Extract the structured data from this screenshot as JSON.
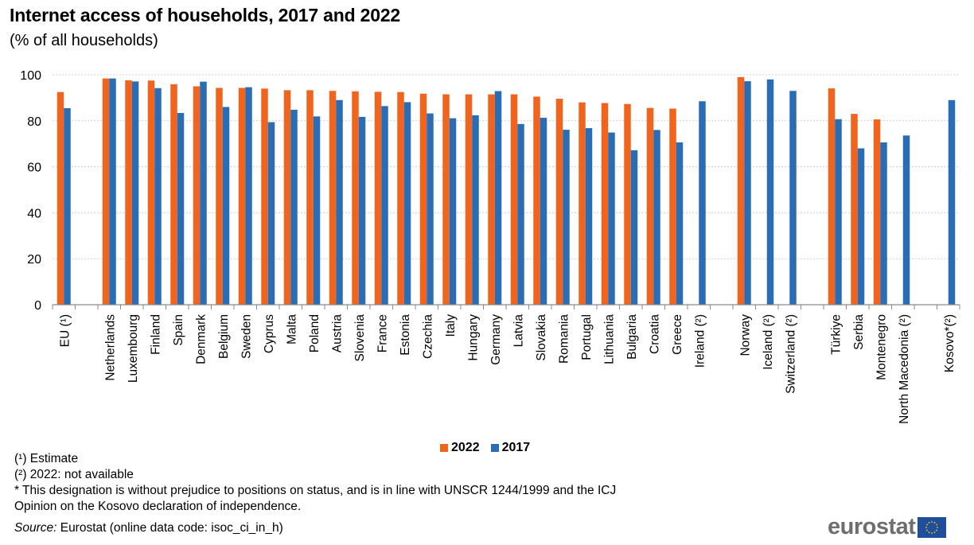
{
  "header": {
    "title": "Internet access of households, 2017 and 2022",
    "subtitle": "(% of all households)"
  },
  "legend": {
    "items": [
      {
        "label": "2022",
        "color": "#f0641e"
      },
      {
        "label": "2017",
        "color": "#2a6db5"
      }
    ]
  },
  "footnotes": {
    "estimate": "(¹) Estimate",
    "not_available": "(²) 2022: not available",
    "kosovo_line1": "* This designation is without prejudice to positions on status, and is in line with UNSCR  1244/1999 and the ICJ",
    "kosovo_line2": "Opinion on the Kosovo declaration of independence."
  },
  "source": {
    "label": "Source:",
    "text": " Eurostat (online data code: isoc_ci_in_h)"
  },
  "logo": {
    "text": "eurostat"
  },
  "chart_data": {
    "type": "bar",
    "title": "Internet access of households, 2017 and 2022",
    "subtitle": "(% of all households)",
    "xlabel": "",
    "ylabel": "",
    "ylim": [
      0,
      100
    ],
    "yticks": [
      0,
      20,
      40,
      60,
      80,
      100
    ],
    "grid": true,
    "legend_position": "bottom-center",
    "categories": [
      "EU (¹)",
      "",
      "Netherlands",
      "Luxembourg",
      "Finland",
      "Spain",
      "Denmark",
      "Belgium",
      "Sweden",
      "Cyprus",
      "Malta",
      "Poland",
      "Austria",
      "Slovenia",
      "France",
      "Estonia",
      "Czechia",
      "Italy",
      "Hungary",
      "Germany",
      "Latvia",
      "Slovakia",
      "Romania",
      "Portugal",
      "Lithuania",
      "Bulgaria",
      "Croatia",
      "Greece",
      "Ireland (²)",
      "",
      "Norway",
      "Iceland (²)",
      "Switzerland (²)",
      "",
      "Türkiye",
      "Serbia",
      "Montenegro",
      "North Macedonia (²)",
      "",
      "Kosovo*(²)"
    ],
    "series": [
      {
        "name": "2022",
        "color": "#f0641e",
        "values": [
          92.5,
          null,
          98.4,
          97.6,
          97.5,
          95.9,
          95.0,
          94.3,
          94.3,
          94.0,
          93.3,
          93.3,
          93.0,
          92.8,
          92.6,
          92.5,
          91.8,
          91.5,
          91.5,
          91.5,
          91.5,
          90.5,
          89.6,
          88.0,
          87.7,
          87.3,
          85.6,
          85.3,
          null,
          null,
          99.0,
          null,
          null,
          null,
          94.1,
          83.0,
          80.6,
          null,
          null,
          null
        ]
      },
      {
        "name": "2017",
        "color": "#2a6db5",
        "values": [
          85.5,
          null,
          98.4,
          97.1,
          94.2,
          83.4,
          97.0,
          86.0,
          94.6,
          79.4,
          84.8,
          81.9,
          89.0,
          81.7,
          86.4,
          88.1,
          83.2,
          81.1,
          82.4,
          92.9,
          78.6,
          81.3,
          76.1,
          76.8,
          74.9,
          67.2,
          76.0,
          70.6,
          88.5,
          null,
          97.2,
          98.0,
          93.0,
          null,
          80.7,
          68.0,
          70.6,
          73.6,
          null,
          89.0
        ]
      }
    ]
  }
}
